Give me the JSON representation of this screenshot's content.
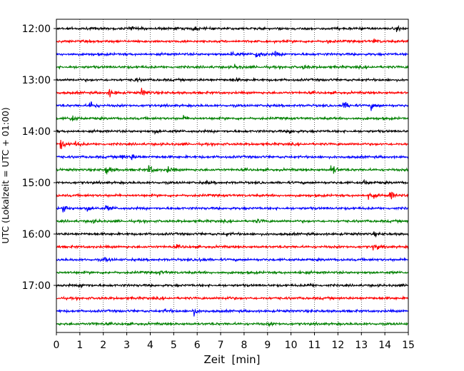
{
  "chart_data": {
    "type": "line",
    "title": "",
    "xlabel": "Zeit  [min]",
    "ylabel": "UTC (Lokalzeit = UTC + 01:00)",
    "xlim": [
      0,
      15
    ],
    "x_ticks": [
      "0",
      "1",
      "2",
      "3",
      "4",
      "5",
      "6",
      "7",
      "8",
      "9",
      "10",
      "11",
      "12",
      "13",
      "14",
      "15"
    ],
    "y_ticks": [
      "12:00",
      "13:00",
      "14:00",
      "15:00",
      "16:00",
      "17:00"
    ],
    "grid": "vertical dotted lines at each minute",
    "row_interval_minutes": 15,
    "row_colors": [
      "#000000",
      "#ff0000",
      "#0000ff",
      "#008000"
    ],
    "rows": [
      {
        "start": "12:00",
        "color": "#000000",
        "events": [
          {
            "x": 3.1,
            "amp": 0.4
          },
          {
            "x": 5.8,
            "amp": 0.35
          },
          {
            "x": 14.5,
            "amp": 0.4
          }
        ]
      },
      {
        "start": "12:15",
        "color": "#ff0000",
        "events": [
          {
            "x": 11.5,
            "amp": 0.3
          },
          {
            "x": 13.5,
            "amp": 0.35
          }
        ]
      },
      {
        "start": "12:30",
        "color": "#0000ff",
        "events": [
          {
            "x": 7.4,
            "amp": 0.7
          },
          {
            "x": 8.5,
            "amp": 0.95
          },
          {
            "x": 9.3,
            "amp": 0.45
          }
        ]
      },
      {
        "start": "12:45",
        "color": "#008000",
        "events": [
          {
            "x": 7.6,
            "amp": 0.4
          },
          {
            "x": 10.5,
            "amp": 0.35
          }
        ]
      },
      {
        "start": "13:00",
        "color": "#000000",
        "events": [
          {
            "x": 3.3,
            "amp": 0.4
          },
          {
            "x": 7.5,
            "amp": 0.3
          }
        ]
      },
      {
        "start": "13:15",
        "color": "#ff0000",
        "events": [
          {
            "x": 2.2,
            "amp": 0.9
          },
          {
            "x": 3.6,
            "amp": 0.8
          }
        ]
      },
      {
        "start": "13:30",
        "color": "#0000ff",
        "events": [
          {
            "x": 1.4,
            "amp": 1.0
          },
          {
            "x": 12.2,
            "amp": 0.9
          },
          {
            "x": 13.4,
            "amp": 0.7
          }
        ]
      },
      {
        "start": "13:45",
        "color": "#008000",
        "events": [
          {
            "x": 0.6,
            "amp": 0.5
          },
          {
            "x": 5.4,
            "amp": 0.4
          }
        ]
      },
      {
        "start": "14:00",
        "color": "#000000",
        "events": [
          {
            "x": 4.2,
            "amp": 0.4
          },
          {
            "x": 9.9,
            "amp": 0.45
          },
          {
            "x": 15.0,
            "amp": 0.6
          }
        ]
      },
      {
        "start": "14:15",
        "color": "#ff0000",
        "events": [
          {
            "x": 0.15,
            "amp": 1.0
          },
          {
            "x": 0.8,
            "amp": 0.5
          }
        ]
      },
      {
        "start": "14:30",
        "color": "#0000ff",
        "events": [
          {
            "x": 2.7,
            "amp": 0.6
          },
          {
            "x": 3.2,
            "amp": 0.5
          }
        ]
      },
      {
        "start": "14:45",
        "color": "#008000",
        "events": [
          {
            "x": 2.1,
            "amp": 1.0
          },
          {
            "x": 3.9,
            "amp": 1.0
          },
          {
            "x": 4.7,
            "amp": 0.6
          },
          {
            "x": 11.7,
            "amp": 1.0
          }
        ]
      },
      {
        "start": "15:00",
        "color": "#000000",
        "events": [
          {
            "x": 6.3,
            "amp": 0.3
          },
          {
            "x": 13.1,
            "amp": 0.4
          }
        ]
      },
      {
        "start": "15:15",
        "color": "#ff0000",
        "events": [
          {
            "x": 13.3,
            "amp": 0.9
          },
          {
            "x": 14.2,
            "amp": 0.85
          }
        ]
      },
      {
        "start": "15:30",
        "color": "#0000ff",
        "events": [
          {
            "x": 0.25,
            "amp": 1.0
          },
          {
            "x": 1.3,
            "amp": 0.7
          },
          {
            "x": 2.1,
            "amp": 0.5
          }
        ]
      },
      {
        "start": "15:45",
        "color": "#008000",
        "events": [
          {
            "x": 8.5,
            "amp": 0.35
          },
          {
            "x": 1.5,
            "amp": 0.3
          }
        ]
      },
      {
        "start": "16:00",
        "color": "#000000",
        "events": [
          {
            "x": 7.2,
            "amp": 0.3
          },
          {
            "x": 13.5,
            "amp": 0.35
          }
        ]
      },
      {
        "start": "16:15",
        "color": "#ff0000",
        "events": [
          {
            "x": 13.5,
            "amp": 0.7
          },
          {
            "x": 5.1,
            "amp": 0.3
          }
        ]
      },
      {
        "start": "16:30",
        "color": "#0000ff",
        "events": [
          {
            "x": 2.0,
            "amp": 0.45
          },
          {
            "x": 6.1,
            "amp": 0.3
          }
        ]
      },
      {
        "start": "16:45",
        "color": "#008000",
        "events": [
          {
            "x": 4.4,
            "amp": 0.3
          },
          {
            "x": 10.3,
            "amp": 0.3
          }
        ]
      },
      {
        "start": "17:00",
        "color": "#000000",
        "events": [
          {
            "x": 1.0,
            "amp": 0.45
          },
          {
            "x": 10.7,
            "amp": 0.3
          }
        ]
      },
      {
        "start": "17:15",
        "color": "#ff0000",
        "events": [
          {
            "x": 7.2,
            "amp": 0.25
          }
        ]
      },
      {
        "start": "17:30",
        "color": "#0000ff",
        "events": [
          {
            "x": 5.8,
            "amp": 0.85
          },
          {
            "x": 4.6,
            "amp": 0.3
          }
        ]
      },
      {
        "start": "17:45",
        "color": "#008000",
        "events": [
          {
            "x": 1.5,
            "amp": 0.3
          },
          {
            "x": 9.0,
            "amp": 0.3
          }
        ]
      }
    ]
  }
}
